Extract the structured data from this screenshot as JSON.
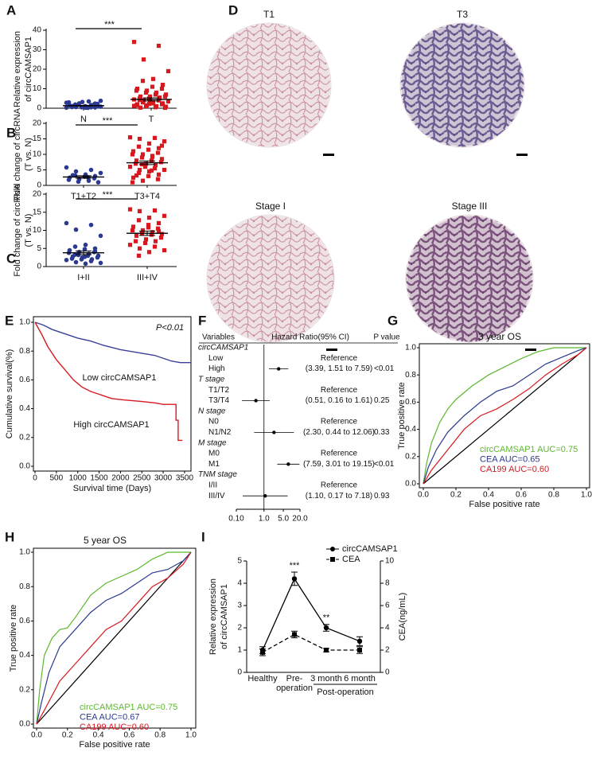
{
  "chart_data": [
    {
      "type": "dotplot",
      "panel": "A",
      "ylabel": [
        "Relative expression",
        "of circCAMSAP1"
      ],
      "categories": [
        "N",
        "T"
      ],
      "ylim": [
        0,
        40
      ],
      "yticks": [
        0,
        10,
        20,
        30,
        40
      ],
      "significance": "***",
      "groups": [
        {
          "color": "#2b3990",
          "marker": "circle",
          "values": [
            0.3,
            0.5,
            0.6,
            0.8,
            1,
            1.2,
            0.4,
            0.7,
            1.5,
            2,
            2.5,
            3,
            3.5,
            1.8,
            0.9,
            0.2,
            1.1,
            2.2,
            3.2,
            0.6,
            1.4,
            0.5,
            2.8,
            1.6,
            0.8,
            3.8,
            0.3,
            1.9,
            2.4,
            1.0
          ],
          "mean": 1.3,
          "sem": 0.2
        },
        {
          "color": "#d7191f",
          "marker": "square",
          "values": [
            34,
            32,
            25,
            19,
            15,
            14,
            12,
            11,
            10,
            10,
            9,
            9,
            8,
            8,
            7,
            7,
            6,
            6,
            6,
            5,
            5,
            5,
            4.5,
            4,
            4,
            3.5,
            3,
            3,
            2.5,
            2.5,
            2,
            2,
            1.5,
            1.5,
            1,
            1,
            0.8,
            0.5,
            0.3,
            0.2,
            3.8,
            4.2,
            5.5,
            2.2,
            1.2
          ],
          "mean": 4.5,
          "sem": 0.8
        }
      ]
    },
    {
      "type": "dotplot",
      "panel": "B",
      "ylabel": [
        "Fold change of circRNA",
        "(T vs. N)"
      ],
      "categories": [
        "T1+T2",
        "T3+T4"
      ],
      "ylim": [
        0,
        20
      ],
      "yticks": [
        0,
        5,
        10,
        15,
        20
      ],
      "significance": "***",
      "groups": [
        {
          "color": "#2b3990",
          "marker": "circle",
          "values": [
            5.8,
            5,
            4.5,
            4,
            3.5,
            3.2,
            3,
            2.8,
            2.5,
            2.3,
            2,
            1.8,
            1.5,
            1.2,
            1,
            2.6,
            3.3
          ],
          "mean": 2.7,
          "sem": 0.4
        },
        {
          "color": "#d7191f",
          "marker": "square",
          "values": [
            15.5,
            15.3,
            15,
            14.2,
            13.5,
            12.5,
            12,
            11.5,
            11,
            10.5,
            10,
            10,
            9.5,
            9,
            8.5,
            8,
            8,
            7.5,
            7,
            7,
            6.5,
            6,
            6,
            5.5,
            5,
            5,
            4.5,
            4,
            3.5,
            3,
            2.5,
            2,
            1.5,
            1,
            9.2,
            6.8,
            12.8,
            4.8,
            3.2
          ],
          "mean": 7.3,
          "sem": 0.6
        }
      ]
    },
    {
      "type": "dotplot",
      "panel": "C",
      "ylabel": [
        "Fold change of circRNA",
        "(T vs. N)"
      ],
      "categories": [
        "I+II",
        "III+IV"
      ],
      "ylim": [
        0,
        20
      ],
      "yticks": [
        0,
        5,
        10,
        15,
        20
      ],
      "significance": "***",
      "groups": [
        {
          "color": "#2b3990",
          "marker": "circle",
          "values": [
            12,
            11.5,
            10.2,
            8.5,
            6,
            5.5,
            5,
            4.8,
            4.5,
            4,
            4,
            3.8,
            3.5,
            3.2,
            3,
            3,
            2.8,
            2.5,
            2.5,
            2.2,
            2,
            2,
            1.8,
            1.5,
            1.2,
            1,
            0.8,
            3.3,
            4.2,
            2.7
          ],
          "mean": 3.8,
          "sem": 0.5
        },
        {
          "color": "#d7191f",
          "marker": "square",
          "values": [
            15.8,
            15.5,
            15.3,
            14,
            13.5,
            12.8,
            12,
            11.5,
            11,
            10.5,
            10,
            10,
            9.5,
            9.2,
            9,
            8.8,
            8.5,
            8,
            7.5,
            7,
            7,
            6.5,
            6,
            5.5,
            5,
            4.5,
            4,
            3,
            9.8,
            10.8
          ],
          "mean": 9.2,
          "sem": 0.6
        }
      ]
    },
    {
      "type": "image",
      "panel": "D",
      "images": [
        {
          "title": "T1",
          "color": "#c98a99"
        },
        {
          "title": "T3",
          "color": "#5b4a86"
        },
        {
          "title": "Stage I",
          "color": "#c98a99"
        },
        {
          "title": "Stage III",
          "color": "#6b3e6e"
        }
      ]
    },
    {
      "type": "survival",
      "panel": "E",
      "xlabel": "Survival time (Days)",
      "ylabel": "Cumulative survival(%)",
      "annotation": "P<0.01",
      "xlim": [
        0,
        3650
      ],
      "xticks": [
        0,
        500,
        1000,
        1500,
        2000,
        2500,
        3000,
        3500
      ],
      "ylim": [
        0,
        1
      ],
      "yticks": [
        {
          "value": 0,
          "label": "0.0"
        },
        {
          "value": 0.2,
          "label": "0.2"
        },
        {
          "value": 0.4,
          "label": "0.4"
        },
        {
          "value": 0.6,
          "label": "0.6"
        },
        {
          "value": 0.8,
          "label": "0.8"
        },
        {
          "value": 1,
          "label": "1.0"
        }
      ],
      "series": [
        {
          "name": "Low circCAMSAP1",
          "color": "#3b3f9a",
          "x": [
            0,
            200,
            400,
            600,
            800,
            1000,
            1300,
            1600,
            2000,
            2400,
            2800,
            3000,
            3200,
            3400,
            3650
          ],
          "values": [
            1,
            0.98,
            0.95,
            0.93,
            0.91,
            0.89,
            0.87,
            0.84,
            0.81,
            0.79,
            0.77,
            0.75,
            0.73,
            0.72,
            0.72
          ]
        },
        {
          "name": "High circCAMSAP1",
          "color": "#d7191f",
          "x": [
            0,
            150,
            300,
            500,
            700,
            900,
            1100,
            1300,
            1500,
            1800,
            2100,
            2500,
            2800,
            3000,
            3300,
            3300,
            3350,
            3350,
            3450
          ],
          "values": [
            1,
            0.92,
            0.83,
            0.74,
            0.67,
            0.6,
            0.55,
            0.52,
            0.5,
            0.47,
            0.46,
            0.45,
            0.44,
            0.43,
            0.43,
            0.32,
            0.32,
            0.18,
            0.18
          ]
        }
      ]
    },
    {
      "type": "forest",
      "panel": "F",
      "variables_header": "Variables",
      "hr_header": "Hazard Ratio(95% CI)",
      "p_header": "P value",
      "xlim": [
        0.1,
        20
      ],
      "log": true,
      "xticks": [
        {
          "value": 0.1,
          "label": "0.10"
        },
        {
          "value": 1,
          "label": "1.0"
        },
        {
          "value": 5,
          "label": "5.0"
        },
        {
          "value": 20,
          "label": "20.0"
        }
      ],
      "groups": [
        {
          "name": "circCAMSAP1",
          "rows": [
            {
              "label": "Low",
              "text": "Reference"
            },
            {
              "label": "High",
              "text": "(3.39, 1.51 to 7.59)",
              "hr": 3.39,
              "lo": 1.51,
              "hi": 7.59,
              "p": "<0.01"
            }
          ]
        },
        {
          "name": "T stage",
          "rows": [
            {
              "label": "T1/T2",
              "text": "Reference"
            },
            {
              "label": "T3/T4",
              "text": "(0.51, 0.16 to 1.61)",
              "hr": 0.51,
              "lo": 0.16,
              "hi": 1.61,
              "p": "0.25"
            }
          ]
        },
        {
          "name": "N stage",
          "rows": [
            {
              "label": "N0",
              "text": "Reference"
            },
            {
              "label": "N1/N2",
              "text": "(2.30, 0.44 to 12.06)",
              "hr": 2.3,
              "lo": 0.44,
              "hi": 12.06,
              "p": "0.33"
            }
          ]
        },
        {
          "name": "M stage",
          "rows": [
            {
              "label": "M0",
              "text": "Reference"
            },
            {
              "label": "M1",
              "text": "(7.59, 3.01 to 19.15)",
              "hr": 7.59,
              "lo": 3.01,
              "hi": 19.15,
              "p": "<0.01"
            }
          ]
        },
        {
          "name": "TNM stage",
          "rows": [
            {
              "label": "I/II",
              "text": "Reference"
            },
            {
              "label": "III/IV",
              "text": "(1.10, 0.17 to 7.18)",
              "hr": 1.1,
              "lo": 0.17,
              "hi": 7.18,
              "p": "0.93"
            }
          ]
        }
      ]
    },
    {
      "type": "roc",
      "panel": "G",
      "title": "3 year OS",
      "xlabel": "False positive rate",
      "ylabel": "True positive rate",
      "xlim": [
        0,
        1
      ],
      "ylim": [
        0,
        1
      ],
      "xticks": [
        {
          "value": 0,
          "label": "0.0"
        },
        {
          "value": 0.2,
          "label": "0.2"
        },
        {
          "value": 0.4,
          "label": "0.4"
        },
        {
          "value": 0.6,
          "label": "0.6"
        },
        {
          "value": 0.8,
          "label": "0.8"
        },
        {
          "value": 1,
          "label": "1.0"
        }
      ],
      "yticks": [
        {
          "value": 0,
          "label": "0.0"
        },
        {
          "value": 0.2,
          "label": "0.2"
        },
        {
          "value": 0.4,
          "label": "0.4"
        },
        {
          "value": 0.6,
          "label": "0.6"
        },
        {
          "value": 0.8,
          "label": "0.8"
        },
        {
          "value": 1,
          "label": "1.0"
        }
      ],
      "series": [
        {
          "name": "circCAMSAP1 AUC=0.75",
          "color": "#5cb82e",
          "x": [
            0,
            0.02,
            0.05,
            0.1,
            0.15,
            0.2,
            0.3,
            0.4,
            0.5,
            0.6,
            0.7,
            0.8,
            1
          ],
          "values": [
            0,
            0.15,
            0.3,
            0.45,
            0.55,
            0.62,
            0.72,
            0.8,
            0.86,
            0.92,
            0.97,
            1,
            1
          ]
        },
        {
          "name": "CEA AUC=0.65",
          "color": "#2b3990",
          "x": [
            0,
            0.03,
            0.08,
            0.15,
            0.25,
            0.35,
            0.45,
            0.55,
            0.65,
            0.75,
            0.85,
            0.95,
            1
          ],
          "values": [
            0,
            0.12,
            0.25,
            0.38,
            0.5,
            0.6,
            0.68,
            0.72,
            0.8,
            0.88,
            0.93,
            0.98,
            1
          ]
        },
        {
          "name": "CA199 AUC=0.60",
          "color": "#d7191f",
          "x": [
            0,
            0.05,
            0.15,
            0.25,
            0.35,
            0.45,
            0.55,
            0.65,
            0.75,
            0.85,
            0.95,
            1
          ],
          "values": [
            0,
            0.1,
            0.25,
            0.4,
            0.5,
            0.55,
            0.62,
            0.7,
            0.8,
            0.88,
            0.95,
            1
          ]
        }
      ]
    },
    {
      "type": "roc",
      "panel": "H",
      "title": "5 year OS",
      "xlabel": "False positive rate",
      "ylabel": "True positive rate",
      "xlim": [
        0,
        1
      ],
      "ylim": [
        0,
        1
      ],
      "xticks": [
        {
          "value": 0,
          "label": "0.0"
        },
        {
          "value": 0.2,
          "label": "0.2"
        },
        {
          "value": 0.4,
          "label": "0.4"
        },
        {
          "value": 0.6,
          "label": "0.6"
        },
        {
          "value": 0.8,
          "label": "0.8"
        },
        {
          "value": 1,
          "label": "1.0"
        }
      ],
      "yticks": [
        {
          "value": 0,
          "label": "0.0"
        },
        {
          "value": 0.2,
          "label": "0.2"
        },
        {
          "value": 0.4,
          "label": "0.4"
        },
        {
          "value": 0.6,
          "label": "0.6"
        },
        {
          "value": 0.8,
          "label": "0.8"
        },
        {
          "value": 1,
          "label": "1.0"
        }
      ],
      "series": [
        {
          "name": "circCAMSAP1 AUC=0.75",
          "color": "#5cb82e",
          "x": [
            0,
            0.02,
            0.05,
            0.1,
            0.15,
            0.2,
            0.25,
            0.35,
            0.45,
            0.55,
            0.65,
            0.75,
            0.85,
            1
          ],
          "values": [
            0,
            0.2,
            0.4,
            0.5,
            0.55,
            0.56,
            0.62,
            0.75,
            0.82,
            0.86,
            0.9,
            0.96,
            1,
            1
          ]
        },
        {
          "name": "CEA AUC=0.67",
          "color": "#2b3990",
          "x": [
            0,
            0.03,
            0.08,
            0.15,
            0.25,
            0.35,
            0.45,
            0.55,
            0.65,
            0.75,
            0.85,
            0.95,
            1
          ],
          "values": [
            0,
            0.12,
            0.3,
            0.45,
            0.55,
            0.65,
            0.72,
            0.76,
            0.82,
            0.88,
            0.9,
            0.95,
            1
          ]
        },
        {
          "name": "CA199 AUC=0.60",
          "color": "#d7191f",
          "x": [
            0,
            0.05,
            0.15,
            0.25,
            0.35,
            0.45,
            0.55,
            0.65,
            0.75,
            0.85,
            0.95,
            1
          ],
          "values": [
            0,
            0.08,
            0.25,
            0.35,
            0.45,
            0.55,
            0.6,
            0.7,
            0.8,
            0.85,
            0.93,
            1
          ]
        }
      ]
    },
    {
      "type": "dual_line",
      "panel": "I",
      "ylabel": [
        "Relative expression",
        "of circCAMSAP1"
      ],
      "y2label": "CEA(ng/mL)",
      "categories": [
        [
          "Healthy"
        ],
        [
          "Pre-",
          "operation"
        ],
        [
          "3 month"
        ],
        [
          "6 month"
        ]
      ],
      "group_label": "Post-operation",
      "ylim": [
        0,
        5
      ],
      "yticks": [
        0,
        1,
        2,
        3,
        4,
        5
      ],
      "y2lim": [
        0,
        10
      ],
      "y2ticks": [
        0,
        2,
        4,
        6,
        8,
        10
      ],
      "sig_labels": [
        null,
        "***",
        "**",
        null
      ],
      "series": [
        {
          "name": "circCAMSAP1",
          "color": "#000000",
          "marker": "circle",
          "dashed": false,
          "values": [
            1.0,
            4.2,
            2.0,
            1.4
          ],
          "errors": [
            0.15,
            0.3,
            0.15,
            0.2
          ]
        },
        {
          "name": "CEA",
          "axis": "y2",
          "color": "#000000",
          "marker": "square",
          "dashed": true,
          "values": [
            1.8,
            3.4,
            2.0,
            2.0
          ],
          "errors": [
            0.3,
            0.3,
            0.15,
            0.3
          ]
        }
      ]
    }
  ]
}
